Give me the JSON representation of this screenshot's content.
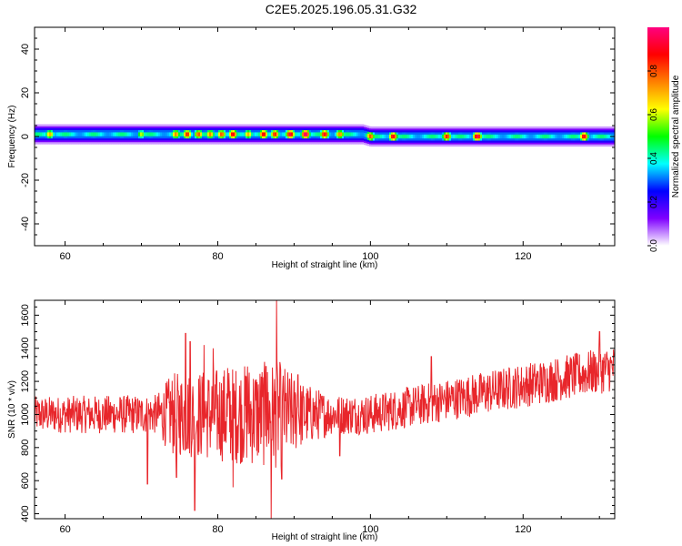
{
  "figure_title": "C2E5.2025.196.05.31.G32",
  "chart_data": [
    {
      "type": "heatmap",
      "panel": "spectrogram",
      "xlabel": "Height of straight line (km)",
      "ylabel": "Frequency (Hz)",
      "xlim": [
        56,
        132
      ],
      "ylim": [
        -50,
        50
      ],
      "x_ticks": [
        60,
        80,
        100,
        120
      ],
      "y_ticks": [
        -40,
        -20,
        0,
        20,
        40
      ],
      "grid": false,
      "colorbar": {
        "label": "Normalized spectral amplitude",
        "range": [
          0,
          1
        ],
        "ticks": [
          "0.0",
          "0.2",
          "0.4",
          "0.6",
          "0.8"
        ],
        "tick_values": [
          0.0,
          0.2,
          0.4,
          0.6,
          0.8
        ],
        "colors": [
          "#ffffff",
          "#7f00ff",
          "#0000ff",
          "#00ffff",
          "#00ff00",
          "#ffff00",
          "#ff8000",
          "#ff0000",
          "#ff0080"
        ]
      },
      "band_center_hz": [
        {
          "x": 56,
          "f": 1
        },
        {
          "x": 99,
          "f": 1
        },
        {
          "x": 100,
          "f": 0
        },
        {
          "x": 132,
          "f": 0
        }
      ],
      "band_halfwidth_hz": 3,
      "hotspots": [
        {
          "x": 58,
          "f": 1,
          "amp": 0.7
        },
        {
          "x": 70,
          "f": 1,
          "amp": 0.6
        },
        {
          "x": 74.5,
          "f": 1,
          "amp": 0.75
        },
        {
          "x": 76,
          "f": 1,
          "amp": 0.85
        },
        {
          "x": 77.5,
          "f": 1,
          "amp": 0.8
        },
        {
          "x": 79,
          "f": 1,
          "amp": 0.75
        },
        {
          "x": 80.5,
          "f": 1,
          "amp": 0.8
        },
        {
          "x": 82,
          "f": 1,
          "amp": 0.9
        },
        {
          "x": 84,
          "f": 1,
          "amp": 0.7
        },
        {
          "x": 86,
          "f": 1,
          "amp": 0.9
        },
        {
          "x": 87.5,
          "f": 1,
          "amp": 0.85
        },
        {
          "x": 89.5,
          "f": 1,
          "amp": 0.95
        },
        {
          "x": 91.5,
          "f": 1,
          "amp": 1.0
        },
        {
          "x": 94,
          "f": 1,
          "amp": 0.9
        },
        {
          "x": 96,
          "f": 1,
          "amp": 0.75
        },
        {
          "x": 100,
          "f": 0,
          "amp": 0.8
        },
        {
          "x": 103,
          "f": 0,
          "amp": 0.9
        },
        {
          "x": 110,
          "f": 0,
          "amp": 0.85
        },
        {
          "x": 114,
          "f": 0,
          "amp": 0.95
        },
        {
          "x": 128,
          "f": 0,
          "amp": 0.9
        }
      ]
    },
    {
      "type": "line",
      "panel": "snr",
      "xlabel": "Height of straight line (km)",
      "ylabel": "SNR (10 * v/v)",
      "xlim": [
        56,
        132
      ],
      "ylim": [
        370,
        1690
      ],
      "x_ticks": [
        60,
        80,
        100,
        120
      ],
      "y_ticks": [
        400,
        600,
        800,
        1000,
        1200,
        1400,
        1600
      ],
      "grid": false,
      "series": [
        {
          "color": "#e8262b",
          "baseline": [
            {
              "x": 56,
              "y": 1000
            },
            {
              "x": 100,
              "y": 1000
            },
            {
              "x": 132,
              "y": 1280
            }
          ],
          "noise_amplitude": [
            {
              "x": 56,
              "a": 110
            },
            {
              "x": 72,
              "a": 120
            },
            {
              "x": 74,
              "a": 250
            },
            {
              "x": 88,
              "a": 330
            },
            {
              "x": 91,
              "a": 200
            },
            {
              "x": 95,
              "a": 120
            },
            {
              "x": 132,
              "a": 140
            }
          ],
          "extremes": [
            {
              "x": 70.8,
              "y": 580
            },
            {
              "x": 74.6,
              "y": 620
            },
            {
              "x": 75.8,
              "y": 1490
            },
            {
              "x": 76.4,
              "y": 1440
            },
            {
              "x": 77.0,
              "y": 420
            },
            {
              "x": 78.2,
              "y": 1420
            },
            {
              "x": 79.4,
              "y": 1400
            },
            {
              "x": 81.3,
              "y": 1280
            },
            {
              "x": 82.0,
              "y": 560
            },
            {
              "x": 83.9,
              "y": 1290
            },
            {
              "x": 86.3,
              "y": 1290
            },
            {
              "x": 87.0,
              "y": 370
            },
            {
              "x": 87.7,
              "y": 1690
            },
            {
              "x": 88.4,
              "y": 610
            },
            {
              "x": 90.5,
              "y": 1240
            },
            {
              "x": 96.0,
              "y": 750
            },
            {
              "x": 108.0,
              "y": 1350
            },
            {
              "x": 130.0,
              "y": 1500
            }
          ]
        }
      ]
    }
  ]
}
